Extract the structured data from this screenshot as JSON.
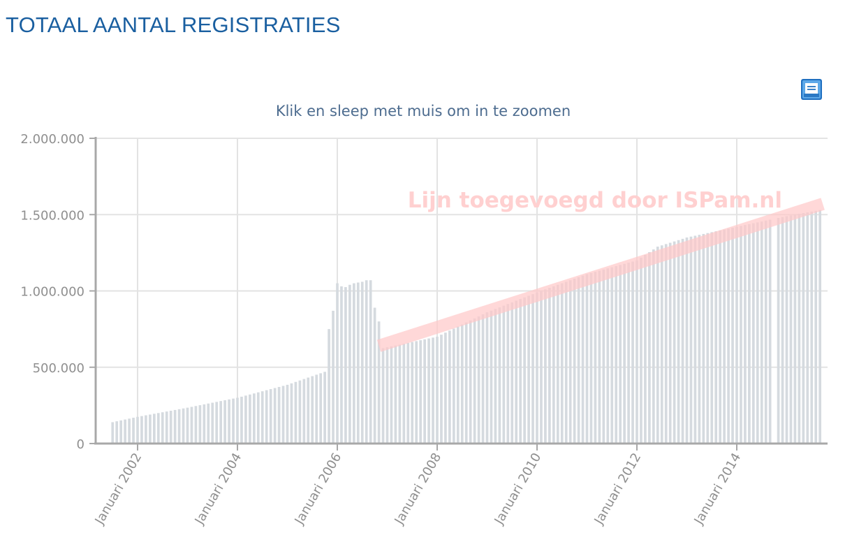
{
  "header": {
    "title": "TOTAAL AANTAL REGISTRATIES"
  },
  "toolbar": {
    "print_icon": "print-icon"
  },
  "chart_data": {
    "type": "bar",
    "title": "",
    "subtitle": "Klik en sleep met muis om in te zoomen",
    "xlabel": "",
    "ylabel": "",
    "x_unit": "month",
    "x_start": "2001-07",
    "ylim": [
      0,
      2000000
    ],
    "y_ticks": [
      0,
      500000,
      1000000,
      1500000,
      2000000
    ],
    "y_tick_labels": [
      "0",
      "500.000",
      "1.000.000",
      "1.500.000",
      "2.000.000"
    ],
    "x_tick_dates": [
      "2002-01",
      "2004-01",
      "2006-01",
      "2008-01",
      "2010-01",
      "2012-01",
      "2014-01"
    ],
    "x_tick_labels": [
      "Januari 2002",
      "Januari 2004",
      "Januari 2006",
      "Januari 2008",
      "Januari 2010",
      "Januari 2012",
      "Januari 2014"
    ],
    "grid": true,
    "bar_color": "#d5dadf",
    "gap_months": [
      "2014-10"
    ],
    "anchors": [
      {
        "date": "2001-07",
        "value": 140000
      },
      {
        "date": "2002-01",
        "value": 175000
      },
      {
        "date": "2003-01",
        "value": 235000
      },
      {
        "date": "2004-01",
        "value": 300000
      },
      {
        "date": "2005-01",
        "value": 385000
      },
      {
        "date": "2005-10",
        "value": 470000
      },
      {
        "date": "2005-11",
        "value": 750000
      },
      {
        "date": "2005-12",
        "value": 870000
      },
      {
        "date": "2006-01",
        "value": 1050000
      },
      {
        "date": "2006-02",
        "value": 1030000
      },
      {
        "date": "2006-03",
        "value": 1025000
      },
      {
        "date": "2006-04",
        "value": 1040000
      },
      {
        "date": "2006-05",
        "value": 1050000
      },
      {
        "date": "2006-06",
        "value": 1055000
      },
      {
        "date": "2006-07",
        "value": 1060000
      },
      {
        "date": "2006-08",
        "value": 1070000
      },
      {
        "date": "2006-09",
        "value": 1070000
      },
      {
        "date": "2006-10",
        "value": 890000
      },
      {
        "date": "2006-11",
        "value": 800000
      },
      {
        "date": "2006-12",
        "value": 625000
      },
      {
        "date": "2008-01",
        "value": 700000
      },
      {
        "date": "2009-01",
        "value": 860000
      },
      {
        "date": "2010-01",
        "value": 990000
      },
      {
        "date": "2011-01",
        "value": 1110000
      },
      {
        "date": "2012-01",
        "value": 1200000
      },
      {
        "date": "2012-06",
        "value": 1290000
      },
      {
        "date": "2013-01",
        "value": 1350000
      },
      {
        "date": "2014-01",
        "value": 1420000
      },
      {
        "date": "2015-01",
        "value": 1490000
      },
      {
        "date": "2015-09",
        "value": 1530000
      }
    ],
    "annotation": {
      "text": "Lijn toegevoegd door ISPam.nl",
      "color": "#ffc8c8",
      "start": {
        "date": "2006-12",
        "value": 640000
      },
      "end": {
        "date": "2015-09",
        "value": 1570000
      }
    }
  }
}
